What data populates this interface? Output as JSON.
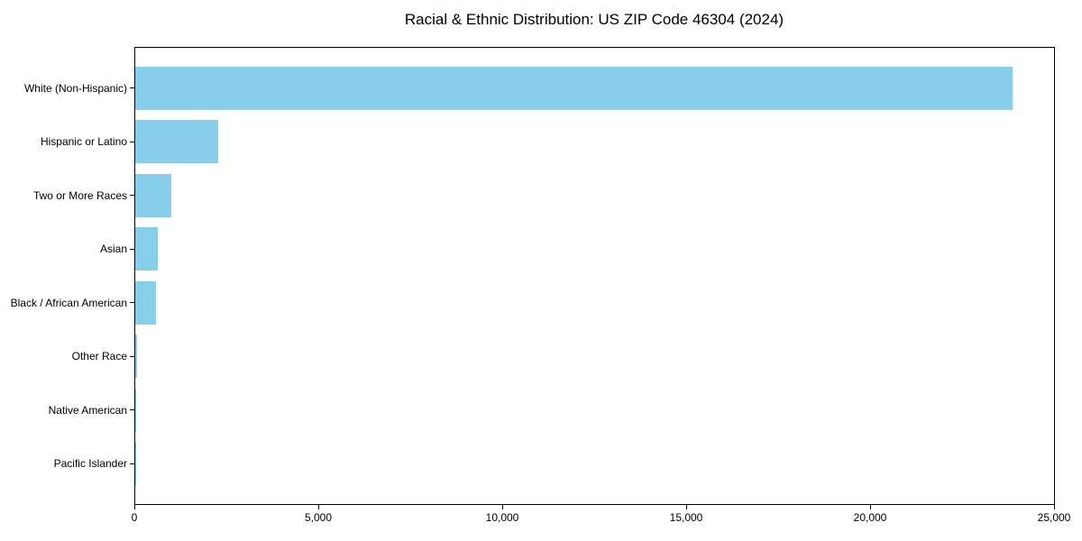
{
  "chart_data": {
    "type": "bar",
    "orientation": "horizontal",
    "title": "Racial & Ethnic Distribution: US ZIP Code 46304 (2024)",
    "categories": [
      "White (Non-Hispanic)",
      "Hispanic or Latino",
      "Two or More Races",
      "Asian",
      "Black / African American",
      "Other Race",
      "Native American",
      "Pacific Islander"
    ],
    "values": [
      23870,
      2250,
      980,
      610,
      570,
      40,
      15,
      5
    ],
    "xlabel": "",
    "ylabel": "",
    "xlim": [
      0,
      25000
    ],
    "xticks": [
      0,
      5000,
      10000,
      15000,
      20000,
      25000
    ],
    "xtick_labels": [
      "0",
      "5,000",
      "10,000",
      "15,000",
      "20,000",
      "25,000"
    ],
    "bar_color": "#87CEEB",
    "axis_color": "#000000",
    "background_color": "#ffffff",
    "grid": false,
    "legend": null
  }
}
